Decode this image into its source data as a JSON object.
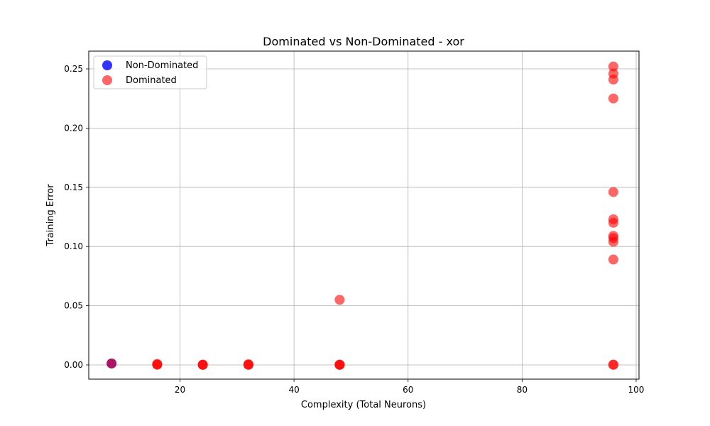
{
  "chart_data": {
    "type": "scatter",
    "title": "Dominated vs Non-Dominated - xor",
    "xlabel": "Complexity (Total Neurons)",
    "ylabel": "Training Error",
    "xlim": [
      4,
      100.5
    ],
    "ylim": [
      -0.012,
      0.265
    ],
    "xticks": [
      20,
      40,
      60,
      80,
      100
    ],
    "yticks": [
      0.0,
      0.05,
      0.1,
      0.15,
      0.2,
      0.25
    ],
    "xtick_labels": [
      "20",
      "40",
      "60",
      "80",
      "100"
    ],
    "ytick_labels": [
      "0.00",
      "0.05",
      "0.10",
      "0.15",
      "0.20",
      "0.25"
    ],
    "grid": true,
    "legend_position": "top-left",
    "series": [
      {
        "name": "Non-Dominated",
        "color": "#0000ff",
        "points": [
          [
            8,
            0.0012
          ]
        ]
      },
      {
        "name": "Dominated",
        "color": "#ff0000",
        "points": [
          [
            8,
            0.0012
          ],
          [
            16,
            0.0008
          ],
          [
            16,
            0.0004
          ],
          [
            16,
            0.0001
          ],
          [
            24,
            0.0003
          ],
          [
            24,
            0.0001
          ],
          [
            24,
            0.0
          ],
          [
            32,
            0.0006
          ],
          [
            32,
            0.0002
          ],
          [
            32,
            0.0
          ],
          [
            48,
            0.055
          ],
          [
            48,
            0.0003
          ],
          [
            48,
            0.0001
          ],
          [
            48,
            0.0
          ],
          [
            96,
            0.252
          ],
          [
            96,
            0.246
          ],
          [
            96,
            0.241
          ],
          [
            96,
            0.225
          ],
          [
            96,
            0.146
          ],
          [
            96,
            0.123
          ],
          [
            96,
            0.12
          ],
          [
            96,
            0.109
          ],
          [
            96,
            0.107
          ],
          [
            96,
            0.104
          ],
          [
            96,
            0.089
          ],
          [
            96,
            0.0003
          ],
          [
            96,
            0.0
          ]
        ]
      }
    ]
  }
}
